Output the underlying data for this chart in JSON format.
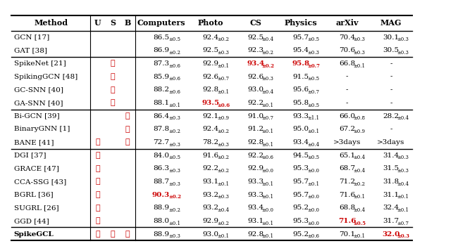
{
  "col_headers": [
    "Method",
    "U",
    "S",
    "B",
    "Computers",
    "Photo",
    "CS",
    "Physics",
    "arXiv",
    "MAG"
  ],
  "groups": [
    {
      "rows": [
        {
          "method": "GCN [17]",
          "u": false,
          "s": false,
          "b": false,
          "computers": "86.5_{±0.5}",
          "photo": "92.4_{±0.2}",
          "cs": "92.5_{±0.4}",
          "physics": "95.7_{±0.5}",
          "arxiv": "70.4_{±0.3}",
          "mag": "30.1_{±0.3}"
        },
        {
          "method": "GAT [38]",
          "u": false,
          "s": false,
          "b": false,
          "computers": "86.9_{±0.2}",
          "photo": "92.5_{±0.3}",
          "cs": "92.3_{±0.2}",
          "physics": "95.4_{±0.3}",
          "arxiv": "70.6_{±0.3}",
          "mag": "30.5_{±0.3}"
        }
      ]
    },
    {
      "rows": [
        {
          "method": "SpikeNet [21]",
          "u": false,
          "s": true,
          "b": false,
          "computers": "87.3_{±0.6}",
          "photo": "92.9_{±0.1}",
          "cs": "93.4_{±0.2}",
          "physics": "95.8_{±0.7}",
          "arxiv": "66.8_{±0.1}",
          "mag": "-",
          "cs_highlight": true,
          "physics_highlight": true
        },
        {
          "method": "SpikingGCN [48]",
          "u": false,
          "s": true,
          "b": false,
          "computers": "85.9_{±0.6}",
          "photo": "92.6_{±0.7}",
          "cs": "92.6_{±0.3}",
          "physics": "91.5_{±0.5}",
          "arxiv": "-",
          "mag": "-"
        },
        {
          "method": "GC-SNN [40]",
          "u": false,
          "s": true,
          "b": false,
          "computers": "88.2_{±0.6}",
          "photo": "92.8_{±0.1}",
          "cs": "93.0_{±0.4}",
          "physics": "95.6_{±0.7}",
          "arxiv": "-",
          "mag": "-"
        },
        {
          "method": "GA-SNN [40]",
          "u": false,
          "s": true,
          "b": false,
          "computers": "88.1_{±0.1}",
          "photo": "93.5_{±0.6}",
          "cs": "92.2_{±0.1}",
          "physics": "95.8_{±0.5}",
          "arxiv": "-",
          "mag": "-",
          "photo_highlight": true
        }
      ]
    },
    {
      "rows": [
        {
          "method": "Bi-GCN [39]",
          "u": false,
          "s": false,
          "b": true,
          "computers": "86.4_{±0.3}",
          "photo": "92.1_{±0.9}",
          "cs": "91.0_{±0.7}",
          "physics": "93.3_{±1.1}",
          "arxiv": "66.0_{±0.8}",
          "mag": "28.2_{±0.4}"
        },
        {
          "method": "BinaryGNN [1]",
          "u": false,
          "s": false,
          "b": true,
          "computers": "87.8_{±0.2}",
          "photo": "92.4_{±0.2}",
          "cs": "91.2_{±0.1}",
          "physics": "95.0_{±0.1}",
          "arxiv": "67.2_{±0.9}",
          "mag": "-"
        },
        {
          "method": "BANE [41]",
          "u": true,
          "s": false,
          "b": true,
          "computers": "72.7_{±0.3}",
          "photo": "78.2_{±0.3}",
          "cs": "92.8_{±0.1}",
          "physics": "93.4_{±0.4}",
          "arxiv": ">3days",
          "mag": ">3days"
        }
      ]
    },
    {
      "rows": [
        {
          "method": "DGI [37]",
          "u": true,
          "s": false,
          "b": false,
          "computers": "84.0_{±0.5}",
          "photo": "91.6_{±0.2}",
          "cs": "92.2_{±0.6}",
          "physics": "94.5_{±0.5}",
          "arxiv": "65.1_{±0.4}",
          "mag": "31.4_{±0.3}"
        },
        {
          "method": "GRACE [47]",
          "u": true,
          "s": false,
          "b": false,
          "computers": "86.3_{±0.3}",
          "photo": "92.2_{±0.2}",
          "cs": "92.9_{±0.0}",
          "physics": "95.3_{±0.0}",
          "arxiv": "68.7_{±0.4}",
          "mag": "31.5_{±0.3}"
        },
        {
          "method": "CCA-SSG [43]",
          "u": true,
          "s": false,
          "b": false,
          "computers": "88.7_{±0.3}",
          "photo": "93.1_{±0.1}",
          "cs": "93.3_{±0.1}",
          "physics": "95.7_{±0.1}",
          "arxiv": "71.2_{±0.2}",
          "mag": "31.8_{±0.4}"
        },
        {
          "method": "BGRL [36]",
          "u": true,
          "s": false,
          "b": false,
          "computers": "90.3_{±0.2}",
          "photo": "93.2_{±0.3}",
          "cs": "93.3_{±0.1}",
          "physics": "95.7_{±0.0}",
          "arxiv": "71.6_{±0.1}",
          "mag": "31.1_{±0.1}",
          "computers_highlight": true
        },
        {
          "method": "SUGRL [26]",
          "u": true,
          "s": false,
          "b": false,
          "computers": "88.9_{±0.2}",
          "photo": "93.2_{±0.4}",
          "cs": "93.4_{±0.0}",
          "physics": "95.2_{±0.0}",
          "arxiv": "68.8_{±0.4}",
          "mag": "32.4_{±0.1}"
        },
        {
          "method": "GGD [44]",
          "u": true,
          "s": false,
          "b": false,
          "computers": "88.0_{±0.1}",
          "photo": "92.9_{±0.2}",
          "cs": "93.1_{±0.1}",
          "physics": "95.3_{±0.0}",
          "arxiv": "71.6_{±0.5}",
          "mag": "31.7_{±0.7}",
          "arxiv_highlight": true
        }
      ]
    }
  ],
  "final_row": {
    "method": "SpikeGCL",
    "u": true,
    "s": true,
    "b": true,
    "computers": "88.9_{±0.3}",
    "photo": "93.0_{±0.1}",
    "cs": "92.8_{±0.1}",
    "physics": "95.2_{±0.6}",
    "arxiv": "70.1_{±0.1}",
    "mag": "32.0_{±0.3}",
    "mag_highlight": true
  },
  "checkmark": "✓",
  "highlight_color": "#ffb3b3",
  "final_highlight_color": "#ffb3c0",
  "final_mag_highlight_color": "#ff6666",
  "red_color": "#cc0000",
  "text_color": "#000000"
}
